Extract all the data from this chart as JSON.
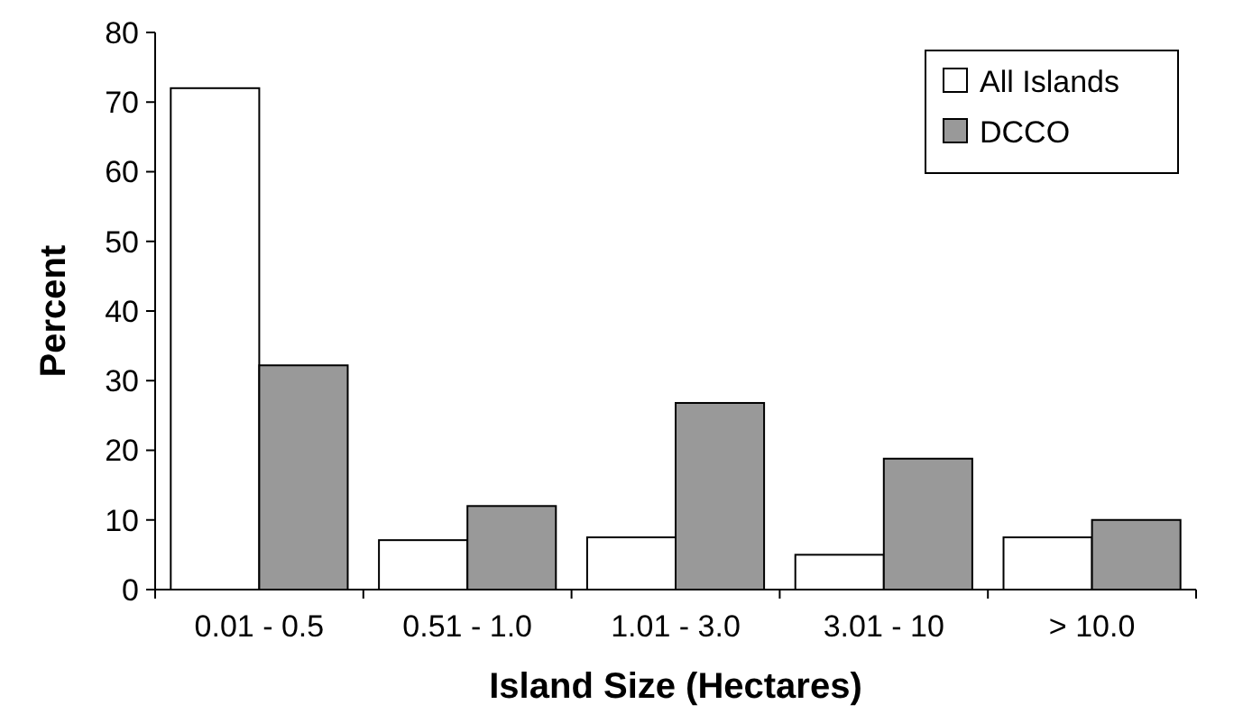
{
  "chart_data": {
    "type": "bar",
    "xlabel": "Island Size (Hectares)",
    "ylabel": "Percent",
    "categories": [
      "0.01 - 0.5",
      "0.51 - 1.0",
      "1.01 - 3.0",
      "3.01 - 10",
      "> 10.0"
    ],
    "series": [
      {
        "name": "All Islands",
        "color": "#ffffff",
        "values": [
          72,
          7.1,
          7.5,
          5.0,
          7.5
        ]
      },
      {
        "name": "DCCO",
        "color": "#999999",
        "values": [
          32.2,
          12,
          26.8,
          18.8,
          10
        ]
      }
    ],
    "ylim": [
      0,
      80
    ],
    "yticks": [
      0,
      10,
      20,
      30,
      40,
      50,
      60,
      70,
      80
    ],
    "grid": false,
    "legend": "top right"
  }
}
